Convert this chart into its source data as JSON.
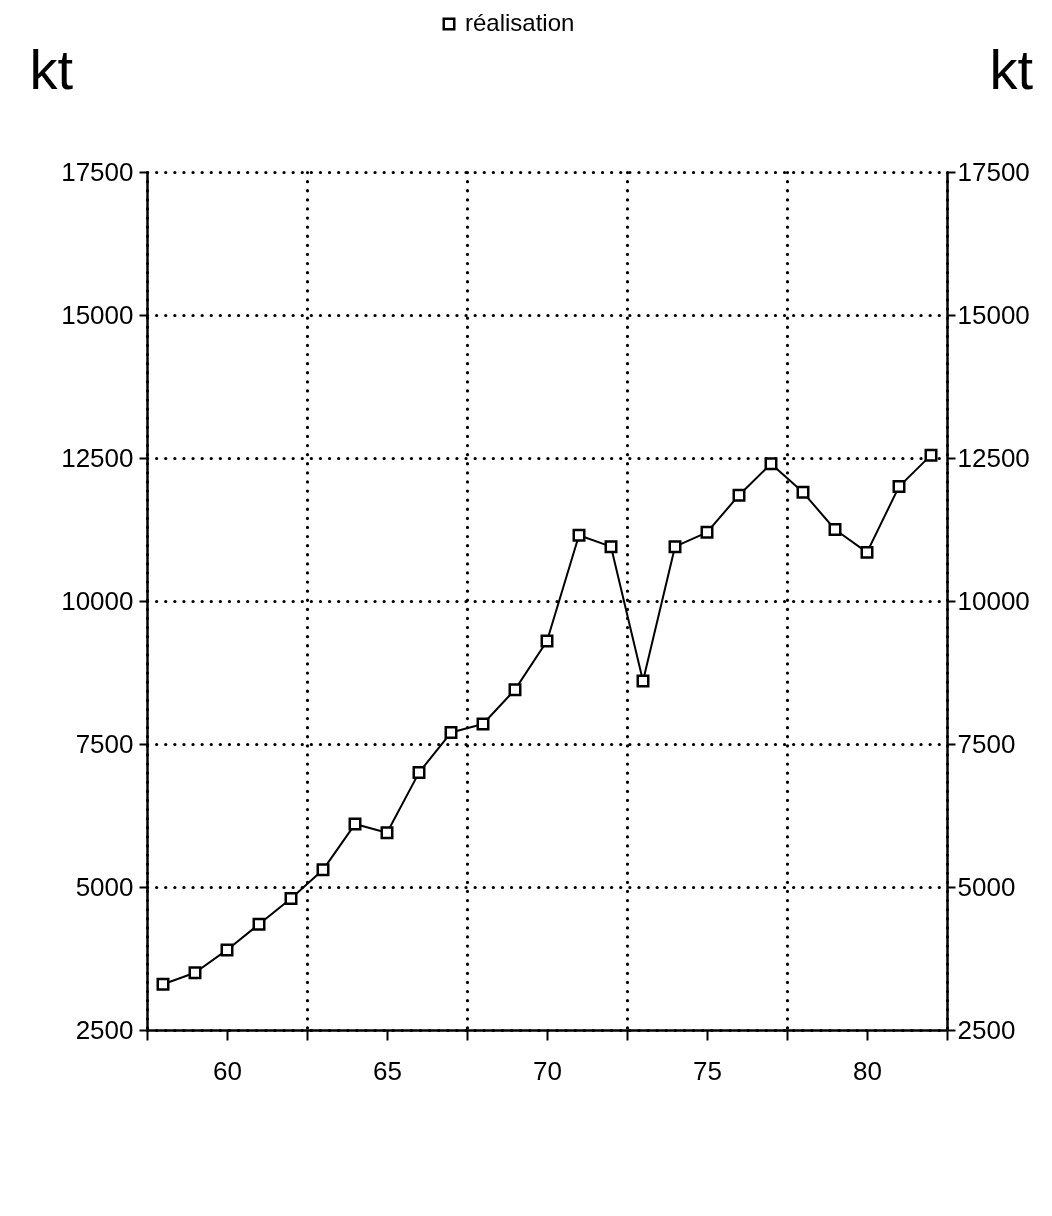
{
  "chart_data": {
    "type": "line",
    "ylabel": "kt",
    "y2label": "kt",
    "x": [
      58,
      59,
      60,
      61,
      62,
      63,
      64,
      65,
      66,
      67,
      68,
      69,
      70,
      71,
      72,
      73,
      74,
      75,
      76,
      77,
      78,
      79,
      80,
      81,
      82
    ],
    "series": [
      {
        "name": "réalisation",
        "color": "#000000",
        "values": [
          3300,
          3500,
          3900,
          4350,
          4800,
          5300,
          6100,
          5950,
          7000,
          7700,
          7850,
          8450,
          9300,
          11150,
          10950,
          8600,
          10950,
          11200,
          11850,
          12400,
          11900,
          11250,
          10850,
          12000,
          12550
        ]
      }
    ],
    "xlim": [
      57.5,
      82.5
    ],
    "xticks": [
      {
        "value": 57.5,
        "label": null
      },
      60,
      {
        "value": 62.5,
        "label": null
      },
      65,
      {
        "value": 67.5,
        "label": null
      },
      70,
      {
        "value": 72.5,
        "label": null
      },
      75,
      {
        "value": 77.5,
        "label": null
      },
      80,
      {
        "value": 82.5,
        "label": null
      }
    ],
    "ylim": [
      2500,
      17500
    ],
    "yticks": [
      2500,
      5000,
      7500,
      10000,
      12500,
      15000,
      17500
    ],
    "y2lim": [
      2500,
      17500
    ],
    "y2ticks": [
      2500,
      5000,
      7500,
      10000,
      12500,
      15000,
      17500
    ],
    "grid": true,
    "legend": "top",
    "marker": "square",
    "line_style": "solid"
  }
}
